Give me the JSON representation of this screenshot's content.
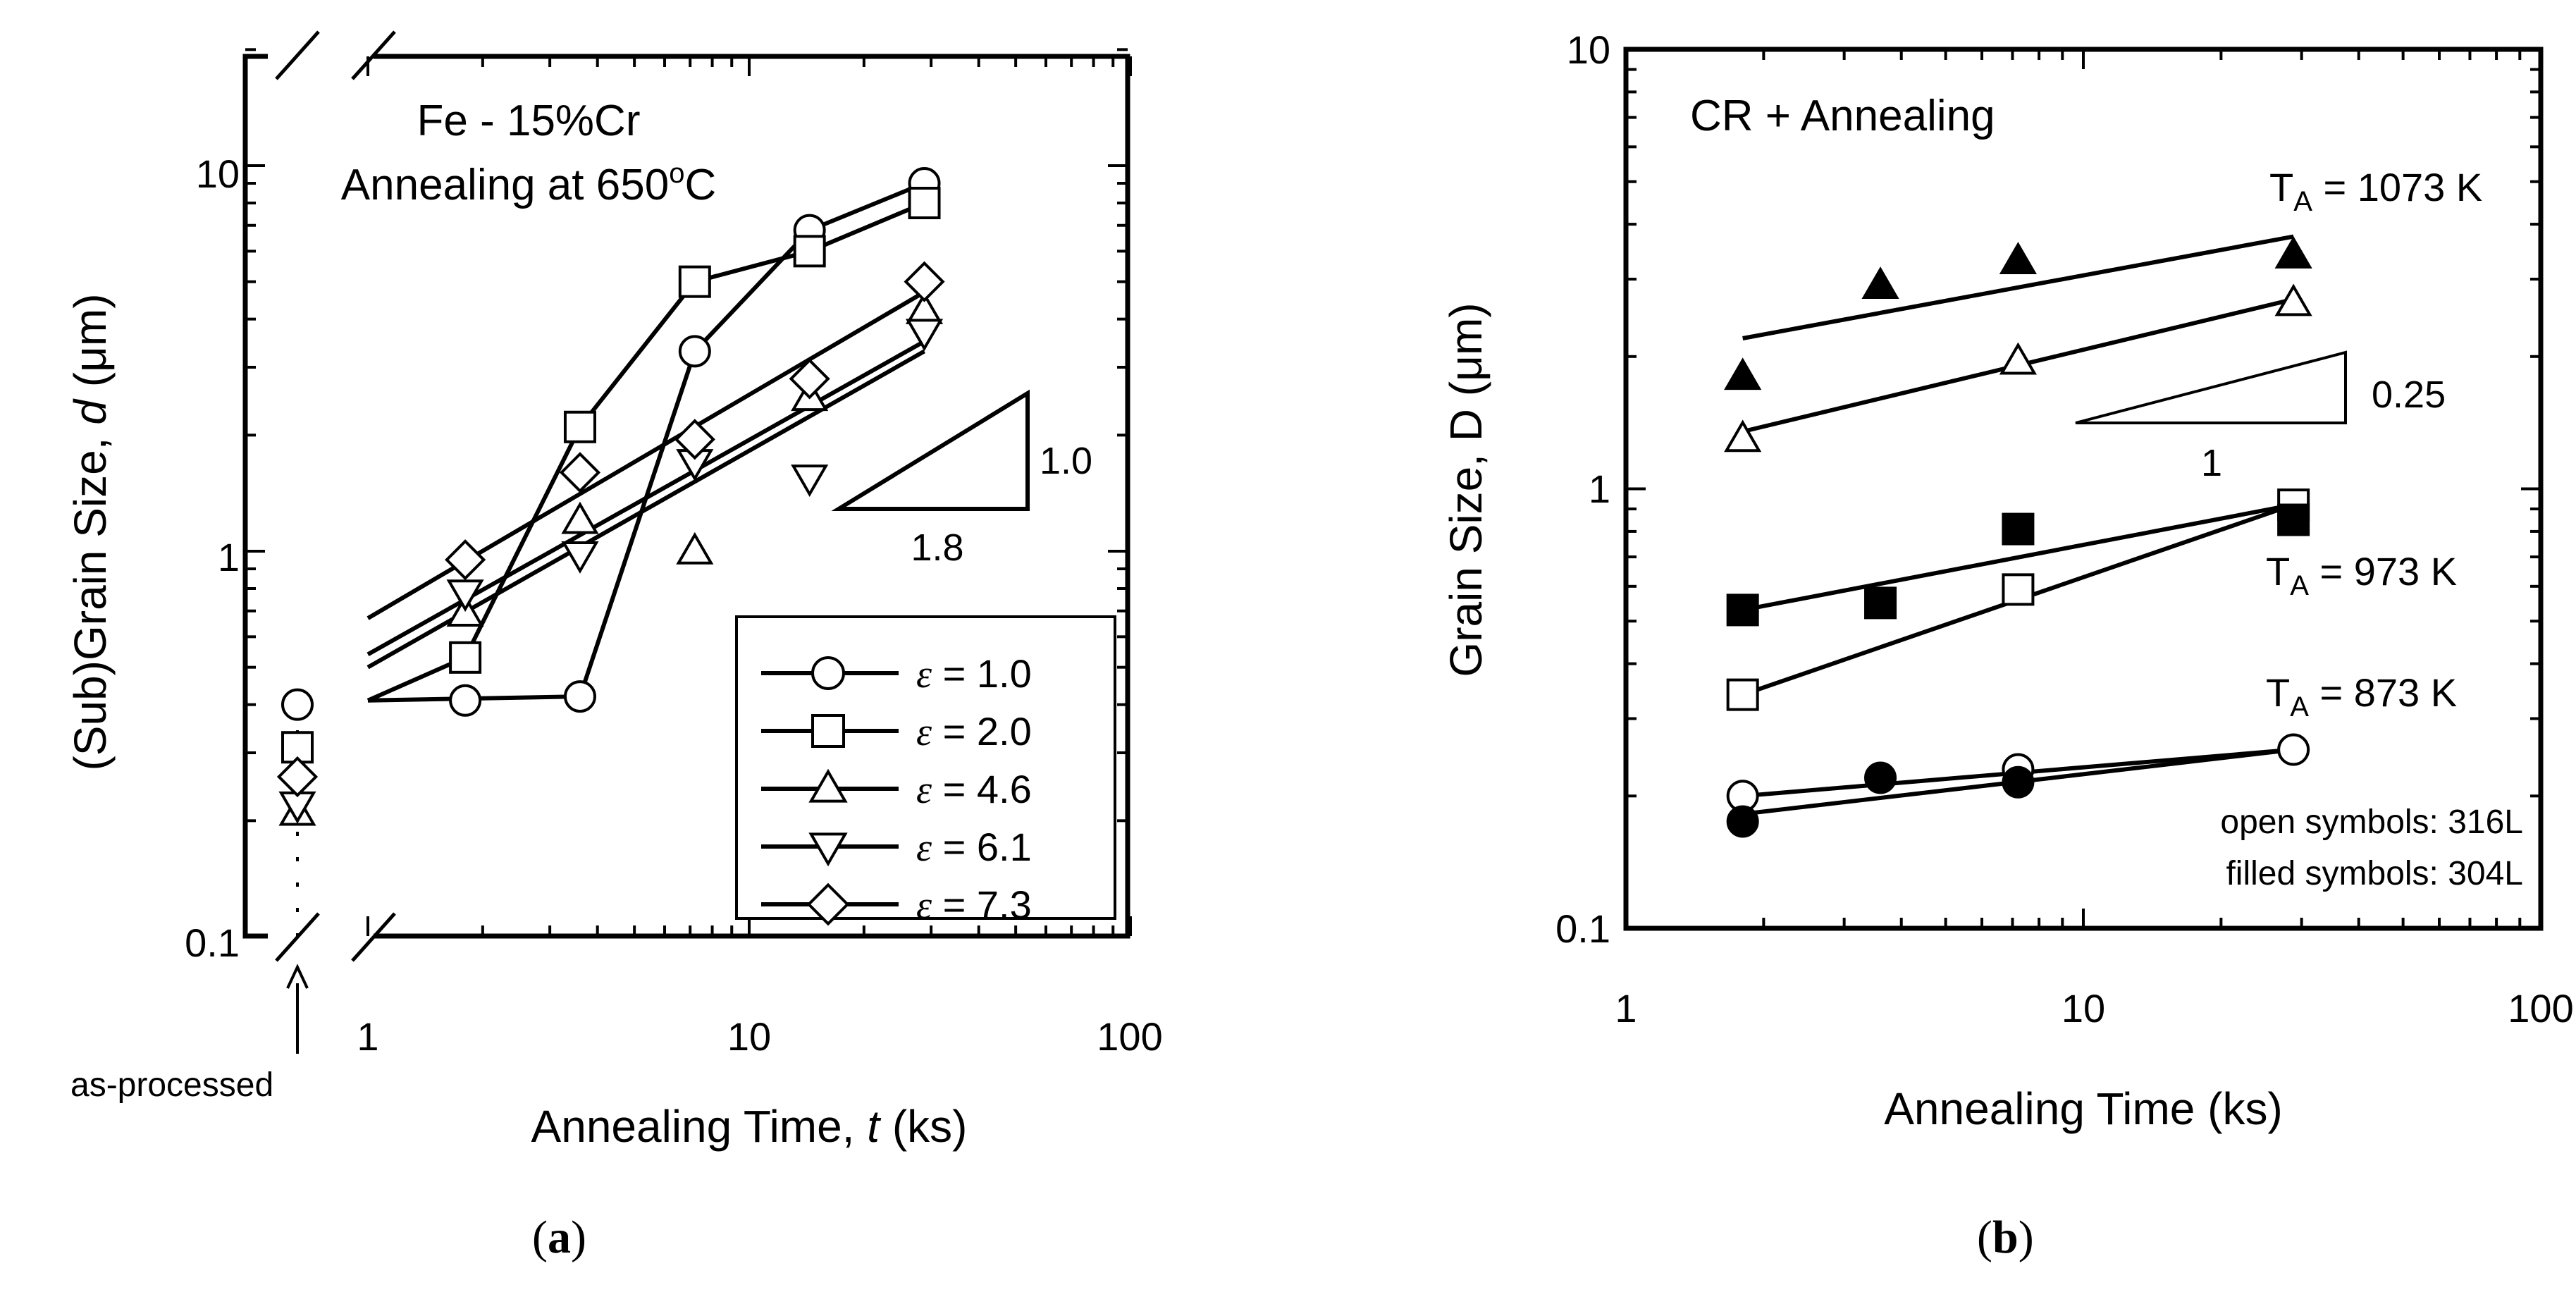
{
  "chart_data": [
    {
      "panel": "(a)",
      "type": "line",
      "title_lines": [
        "Fe - 15%Cr",
        "Annealing at 650°C"
      ],
      "title_parts": {
        "line2_prefix": "Annealing at 650",
        "line2_sup": "o",
        "line2_suffix": "C"
      },
      "xlabel": "Annealing Time, t (ks)",
      "xlabel_parts": {
        "prefix": "Annealing Time, ",
        "italic": "t",
        "suffix": " (ks)"
      },
      "ylabel": "(Sub)Grain Size, d (μm)",
      "ylabel_parts": {
        "prefix": "(Sub)Grain Size, ",
        "italic": "d",
        "suffix": " (μm)"
      },
      "xscale": "log",
      "yscale": "log",
      "xlim": [
        1,
        100
      ],
      "ylim": [
        0.1,
        20
      ],
      "x_ticks": [
        "1",
        "10",
        "100"
      ],
      "y_ticks": [
        "0.1",
        "1",
        "10"
      ],
      "as_processed_label": "as-processed",
      "slope_triangle": {
        "rise": "1.0",
        "run": "1.8"
      },
      "legend_position": "bottom-right",
      "series": [
        {
          "name": "ε = 1.0",
          "label_value": "1.0",
          "marker": "circle",
          "as_processed": 0.4,
          "points": [
            [
              1.8,
              0.41
            ],
            [
              3.6,
              0.42
            ],
            [
              7.2,
              3.3
            ],
            [
              14.4,
              6.8
            ],
            [
              28.8,
              9.0
            ]
          ],
          "line": [
            [
              1.0,
              0.41
            ],
            [
              3.6,
              0.42
            ],
            [
              7.2,
              3.3
            ],
            [
              14.4,
              6.8
            ],
            [
              28.8,
              9.0
            ]
          ]
        },
        {
          "name": "ε = 2.0",
          "label_value": "2.0",
          "marker": "square",
          "as_processed": 0.31,
          "points": [
            [
              1.8,
              0.53
            ],
            [
              3.6,
              2.1
            ],
            [
              7.2,
              5.0
            ],
            [
              14.4,
              6.0
            ],
            [
              28.8,
              8.0
            ]
          ],
          "line": [
            [
              1.0,
              0.41
            ],
            [
              1.8,
              0.53
            ],
            [
              3.6,
              2.1
            ],
            [
              7.2,
              5.0
            ],
            [
              14.4,
              6.0
            ],
            [
              28.8,
              8.0
            ]
          ]
        },
        {
          "name": "ε = 4.6",
          "label_value": "4.6",
          "marker": "triangle-up",
          "as_processed": 0.21,
          "points": [
            [
              1.8,
              0.69
            ],
            [
              3.6,
              1.2
            ],
            [
              7.2,
              1.0
            ],
            [
              14.4,
              2.5
            ],
            [
              28.8,
              4.2
            ]
          ],
          "line": [
            [
              1.0,
              0.5
            ],
            [
              28.8,
              3.3
            ]
          ]
        },
        {
          "name": "ε = 6.1",
          "label_value": "6.1",
          "marker": "triangle-down",
          "as_processed": 0.22,
          "points": [
            [
              1.8,
              0.78
            ],
            [
              3.6,
              0.98
            ],
            [
              7.2,
              1.7
            ],
            [
              14.4,
              1.55
            ],
            [
              28.8,
              3.7
            ]
          ],
          "line": [
            [
              1.0,
              0.54
            ],
            [
              28.8,
              3.5
            ]
          ]
        },
        {
          "name": "ε = 7.3",
          "label_value": "7.3",
          "marker": "diamond",
          "as_processed": 0.26,
          "points": [
            [
              1.8,
              0.95
            ],
            [
              3.6,
              1.6
            ],
            [
              7.2,
              1.95
            ],
            [
              14.4,
              2.8
            ],
            [
              28.8,
              5.0
            ]
          ],
          "line": [
            [
              1.0,
              0.67
            ],
            [
              28.8,
              4.7
            ]
          ]
        }
      ]
    },
    {
      "panel": "(b)",
      "type": "scatter",
      "title": "CR + Annealing",
      "xlabel": "Annealing Time (ks)",
      "ylabel": "Grain Size, D (μm)",
      "xscale": "log",
      "yscale": "log",
      "xlim": [
        1,
        100
      ],
      "ylim": [
        0.1,
        10
      ],
      "x_ticks": [
        "1",
        "10",
        "100"
      ],
      "y_ticks": [
        "0.1",
        "1",
        "10"
      ],
      "slope_triangle": {
        "rise": "0.25",
        "run": "1"
      },
      "annotations": [
        {
          "label": "T_A = 1073 K",
          "main": "T",
          "sub": "A",
          "rest": " = 1073 K"
        },
        {
          "label": "T_A = 973 K",
          "main": "T",
          "sub": "A",
          "rest": " = 973 K"
        },
        {
          "label": "T_A = 873 K",
          "main": "T",
          "sub": "A",
          "rest": " = 873 K"
        }
      ],
      "notes": [
        "open symbols: 316L",
        "filled symbols: 304L"
      ],
      "series": [
        {
          "name": "316L, 1073 K",
          "marker": "triangle-up",
          "filled": false,
          "points": [
            [
              1.8,
              1.3
            ],
            [
              7.2,
              1.95
            ],
            [
              28.8,
              2.65
            ]
          ],
          "fit": [
            [
              1.8,
              1.35
            ],
            [
              28.8,
              2.7
            ]
          ]
        },
        {
          "name": "304L, 1073 K",
          "marker": "triangle-up",
          "filled": true,
          "points": [
            [
              1.8,
              1.8
            ],
            [
              3.6,
              2.9
            ],
            [
              7.2,
              3.3
            ],
            [
              28.8,
              3.4
            ]
          ],
          "fit": [
            [
              1.8,
              2.2
            ],
            [
              28.8,
              3.75
            ]
          ]
        },
        {
          "name": "316L, 973 K",
          "marker": "square",
          "filled": false,
          "points": [
            [
              1.8,
              0.34
            ],
            [
              7.2,
              0.59
            ],
            [
              28.8,
              0.92
            ]
          ],
          "fit": [
            [
              1.8,
              0.34
            ],
            [
              28.8,
              0.92
            ]
          ]
        },
        {
          "name": "304L, 973 K",
          "marker": "square",
          "filled": true,
          "points": [
            [
              1.8,
              0.53
            ],
            [
              3.6,
              0.55
            ],
            [
              7.2,
              0.81
            ],
            [
              28.8,
              0.85
            ]
          ],
          "fit": [
            [
              1.8,
              0.53
            ],
            [
              28.8,
              0.92
            ]
          ]
        },
        {
          "name": "316L, 873 K",
          "marker": "circle",
          "filled": false,
          "points": [
            [
              1.8,
              0.2
            ],
            [
              7.2,
              0.23
            ],
            [
              28.8,
              0.255
            ]
          ],
          "fit": [
            [
              1.8,
              0.2
            ],
            [
              28.8,
              0.255
            ]
          ]
        },
        {
          "name": "304L, 873 K",
          "marker": "circle",
          "filled": true,
          "points": [
            [
              1.8,
              0.175
            ],
            [
              3.6,
              0.22
            ],
            [
              7.2,
              0.215
            ]
          ],
          "fit": [
            [
              1.8,
              0.182
            ],
            [
              28.8,
              0.255
            ]
          ]
        }
      ]
    }
  ],
  "colors": {
    "ink": "#000000",
    "paper": "#ffffff"
  }
}
